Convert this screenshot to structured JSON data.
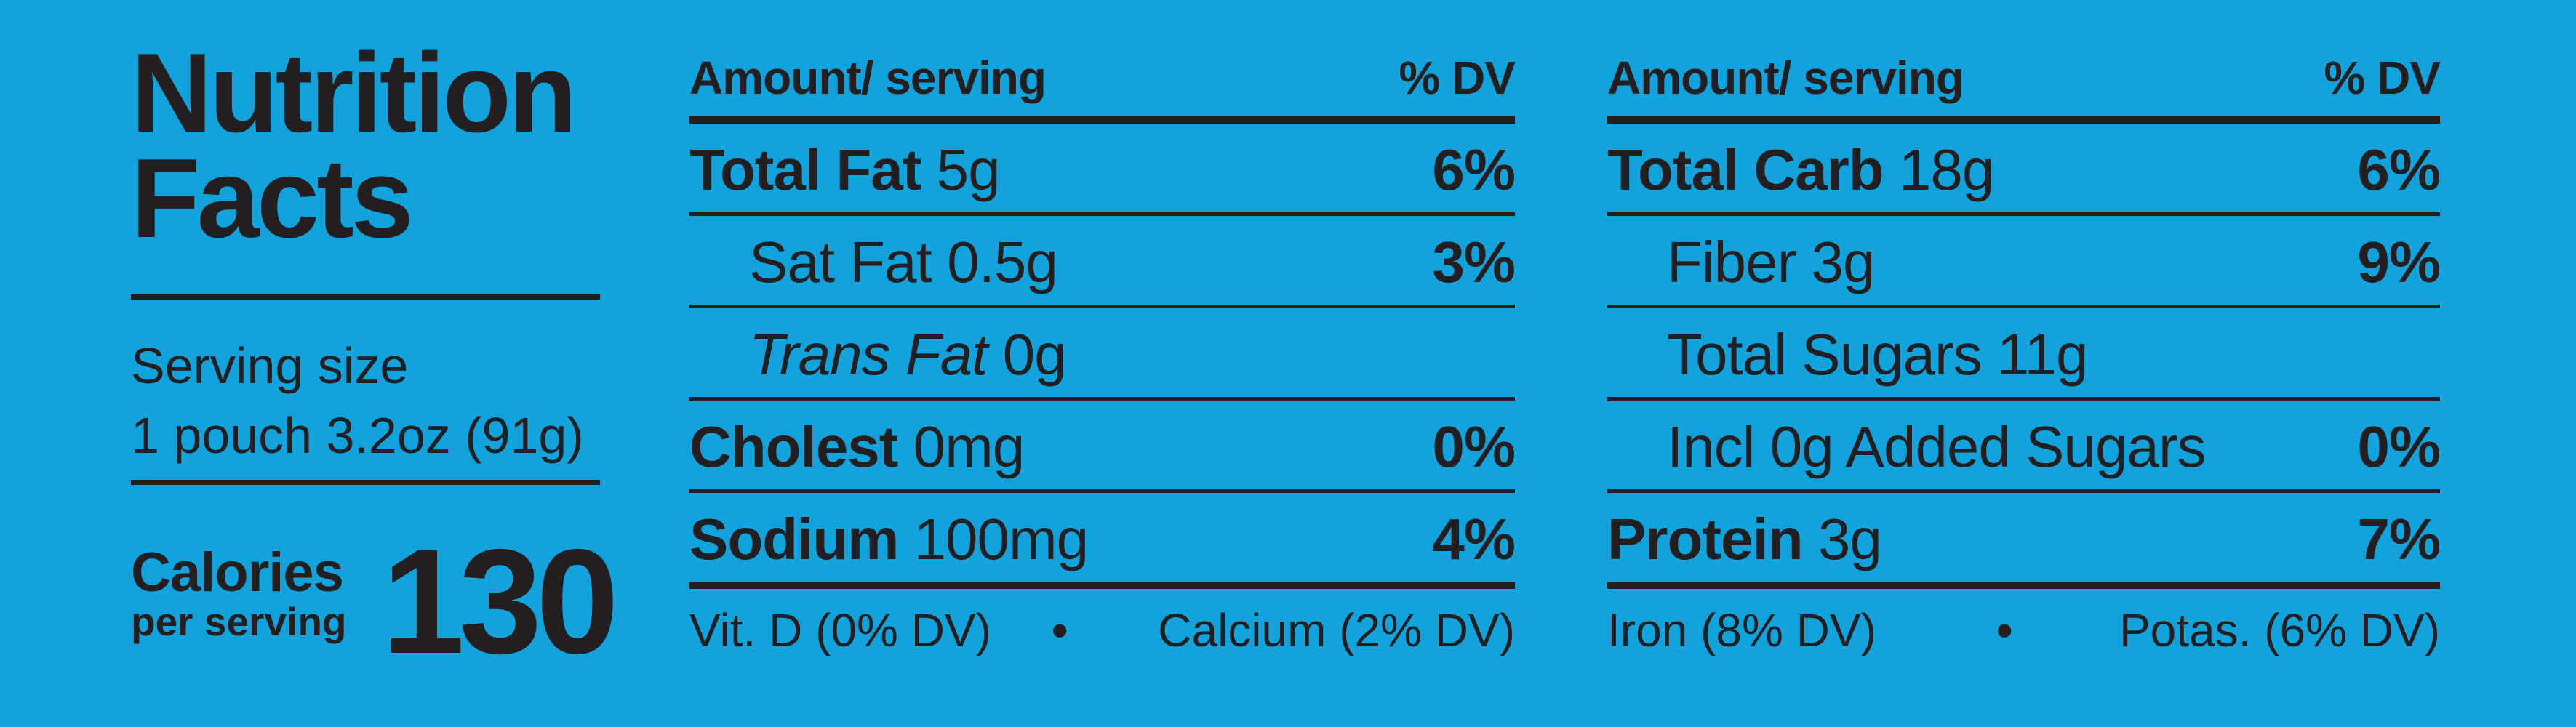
{
  "title": {
    "line1": "Nutrition",
    "line2": "Facts"
  },
  "serving": {
    "label": "Serving size",
    "value": "1 pouch 3.2oz (91g)"
  },
  "calories": {
    "label": "Calories",
    "sublabel": "per serving",
    "value": "130"
  },
  "columns": {
    "header_amount": "Amount/ serving",
    "header_dv": "% DV"
  },
  "left_table": [
    {
      "name": "Total Fat",
      "amount": "5g",
      "dv": "6%"
    },
    {
      "name": "Sat Fat",
      "amount": "0.5g",
      "dv": "3%"
    },
    {
      "name": "Trans Fat",
      "amount": "0g",
      "dv": ""
    },
    {
      "name": "Cholest",
      "amount": "0mg",
      "dv": "0%"
    },
    {
      "name": "Sodium",
      "amount": "100mg",
      "dv": "4%"
    }
  ],
  "right_table": [
    {
      "name": "Total Carb",
      "amount": "18g",
      "dv": "6%"
    },
    {
      "name": "Fiber",
      "amount": "3g",
      "dv": "9%"
    },
    {
      "name": "Total Sugars",
      "amount": "11g",
      "dv": ""
    },
    {
      "name": "Incl 0g Added Sugars",
      "amount": "",
      "dv": "0%"
    },
    {
      "name": "Protein",
      "amount": "3g",
      "dv": "7%"
    }
  ],
  "footer_left": {
    "item1": "Vit. D (0% DV)",
    "separator": "•",
    "item2": "Calcium (2% DV)"
  },
  "footer_right": {
    "item1": "Iron (8% DV)",
    "separator": "•",
    "item2": "Potas. (6% DV)"
  },
  "colors": {
    "background": "#12a2dc",
    "ink": "#231f20"
  }
}
